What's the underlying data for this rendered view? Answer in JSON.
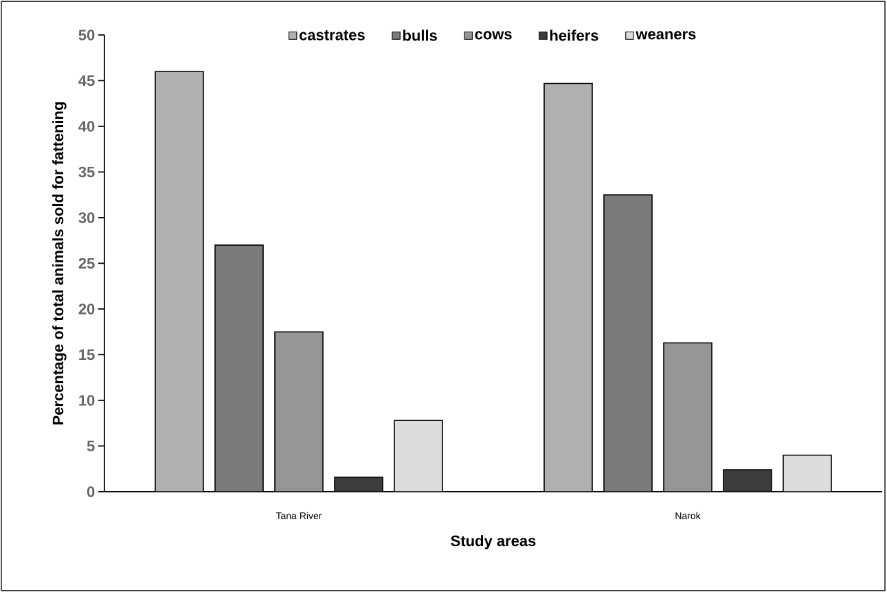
{
  "chart_data": {
    "type": "bar",
    "xlabel": "Study areas",
    "ylabel": "Percentage of total animals sold for fattening",
    "categories": [
      "Tana River",
      "Narok"
    ],
    "series": [
      {
        "name": "castrates",
        "color": "#b0b0b0",
        "values": [
          46.0,
          44.7
        ]
      },
      {
        "name": "bulls",
        "color": "#7a7a7a",
        "values": [
          27.0,
          32.5
        ]
      },
      {
        "name": "cows",
        "color": "#969696",
        "values": [
          17.5,
          16.3
        ]
      },
      {
        "name": "heifers",
        "color": "#3c3c3c",
        "values": [
          1.6,
          2.4
        ]
      },
      {
        "name": "weaners",
        "color": "#dcdcdc",
        "values": [
          7.8,
          4.0
        ]
      }
    ],
    "ylim": [
      0,
      50
    ],
    "yticks": [
      0,
      5,
      10,
      15,
      20,
      25,
      30,
      35,
      40,
      45,
      50
    ],
    "grid": false,
    "legend": "top"
  }
}
